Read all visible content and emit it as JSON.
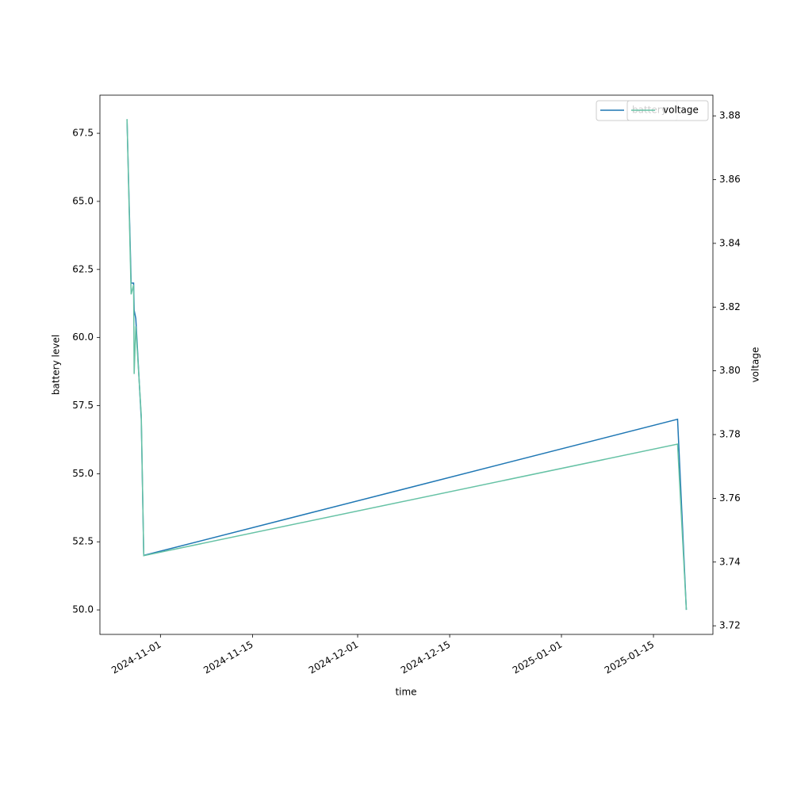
{
  "chart_data": {
    "type": "line",
    "x_label": "time",
    "y_label": "battery level",
    "y2_label": "voltage",
    "x": [
      "2024-10-26T22:00",
      "2024-10-27T13:00",
      "2024-10-27T22:00",
      "2024-10-28T00:00",
      "2024-10-28T06:00",
      "2024-10-29T02:00",
      "2024-10-29T11:00",
      "2025-01-18T16:00",
      "2025-01-20T00:00"
    ],
    "series": [
      {
        "name": "battery",
        "color": "#1f77b4",
        "values": [
          68,
          62,
          62,
          61,
          60.7,
          57,
          52,
          57,
          50
        ]
      },
      {
        "name": "voltage",
        "color": "#66c2a5",
        "axis": "y2",
        "values": [
          3.879,
          3.824,
          3.827,
          3.799,
          3.814,
          3.786,
          3.742,
          3.777,
          3.725
        ]
      }
    ],
    "xlim": [
      "2024-10-22T19:00",
      "2025-01-24T01:00"
    ],
    "xticks": [
      "2024-11-01",
      "2024-11-15",
      "2024-12-01",
      "2024-12-15",
      "2025-01-01",
      "2025-01-15"
    ],
    "ylim": [
      49.1,
      68.9
    ],
    "yticks": [
      {
        "value": 50,
        "label": "50.0"
      },
      52.5,
      {
        "value": 55,
        "label": "55.0"
      },
      57.5,
      {
        "value": 60,
        "label": "60.0"
      },
      62.5,
      {
        "value": 65,
        "label": "65.0"
      },
      67.5
    ],
    "y2lim": [
      3.7173,
      3.8865
    ],
    "y2ticks": [
      3.72,
      3.74,
      3.76,
      3.78,
      {
        "value": 3.8,
        "label": "3.80"
      },
      3.82,
      3.84,
      3.86,
      3.88
    ],
    "legend": "upper right"
  }
}
